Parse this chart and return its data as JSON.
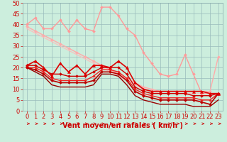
{
  "title": "",
  "xlabel": "Vent moyen/en rafales ( km/h )",
  "ylabel": "",
  "bg_color": "#cceedd",
  "grid_color": "#99bbbb",
  "xlim": [
    -0.5,
    23.5
  ],
  "ylim": [
    0,
    50
  ],
  "yticks": [
    0,
    5,
    10,
    15,
    20,
    25,
    30,
    35,
    40,
    45,
    50
  ],
  "xticks": [
    0,
    1,
    2,
    3,
    4,
    5,
    6,
    7,
    8,
    9,
    10,
    11,
    12,
    13,
    14,
    15,
    16,
    17,
    18,
    19,
    20,
    21,
    22,
    23
  ],
  "series": [
    {
      "name": "rafales_upper",
      "x": [
        0,
        1,
        2,
        3,
        4,
        5,
        6,
        7,
        8,
        9,
        10,
        11,
        12,
        13,
        14,
        15,
        16,
        17,
        18,
        19,
        20,
        21,
        22,
        23
      ],
      "y": [
        40,
        43,
        38,
        38,
        42,
        37,
        42,
        38,
        37,
        48,
        48,
        44,
        38,
        35,
        27,
        22,
        17,
        16,
        17,
        26,
        17,
        8,
        8,
        8
      ],
      "color": "#ff9999",
      "lw": 1.0,
      "marker": "D",
      "ms": 2.0,
      "zorder": 3
    },
    {
      "name": "rafales_trend1",
      "x": [
        0,
        1,
        2,
        3,
        4,
        5,
        6,
        7,
        8,
        9,
        10,
        11,
        12,
        13,
        14,
        15,
        16,
        17,
        18,
        19,
        20,
        21,
        22,
        23
      ],
      "y": [
        39,
        37,
        35,
        33,
        31,
        29,
        27,
        25,
        23,
        21,
        19,
        17,
        15,
        13,
        11,
        10,
        9,
        9,
        9,
        9,
        9,
        9,
        9,
        25
      ],
      "color": "#ffaaaa",
      "lw": 1.0,
      "marker": "D",
      "ms": 2.0,
      "zorder": 3
    },
    {
      "name": "rafales_trend2",
      "x": [
        0,
        1,
        2,
        3,
        4,
        5,
        6,
        7,
        8,
        9,
        10,
        11,
        12,
        13,
        14,
        15,
        16,
        17,
        18,
        19,
        20,
        21,
        22,
        23
      ],
      "y": [
        38,
        36,
        34,
        32,
        30,
        28,
        26,
        24,
        22,
        20,
        18,
        16,
        14,
        12,
        10,
        9,
        8,
        8,
        8,
        8,
        8,
        8,
        8,
        8
      ],
      "color": "#ffbbbb",
      "lw": 0.8,
      "marker": null,
      "ms": 0,
      "zorder": 2
    },
    {
      "name": "vent_upper",
      "x": [
        0,
        1,
        2,
        3,
        4,
        5,
        6,
        7,
        8,
        9,
        10,
        11,
        12,
        13,
        14,
        15,
        16,
        17,
        18,
        19,
        20,
        21,
        22,
        23
      ],
      "y": [
        21,
        23,
        20,
        16,
        22,
        18,
        21,
        17,
        21,
        21,
        20,
        23,
        20,
        13,
        10,
        9,
        9,
        9,
        9,
        9,
        9,
        9,
        8,
        8
      ],
      "color": "#dd0000",
      "lw": 1.2,
      "marker": "^",
      "ms": 3.0,
      "zorder": 4
    },
    {
      "name": "vent_mid1",
      "x": [
        0,
        1,
        2,
        3,
        4,
        5,
        6,
        7,
        8,
        9,
        10,
        11,
        12,
        13,
        14,
        15,
        16,
        17,
        18,
        19,
        20,
        21,
        22,
        23
      ],
      "y": [
        21,
        21,
        19,
        17,
        17,
        16,
        16,
        16,
        18,
        20,
        20,
        20,
        17,
        11,
        9,
        8,
        8,
        8,
        8,
        8,
        7,
        7,
        7,
        8
      ],
      "color": "#cc0000",
      "lw": 1.0,
      "marker": "D",
      "ms": 2.0,
      "zorder": 3
    },
    {
      "name": "vent_mid2",
      "x": [
        0,
        1,
        2,
        3,
        4,
        5,
        6,
        7,
        8,
        9,
        10,
        11,
        12,
        13,
        14,
        15,
        16,
        17,
        18,
        19,
        20,
        21,
        22,
        23
      ],
      "y": [
        20,
        20,
        18,
        15,
        14,
        14,
        14,
        14,
        16,
        19,
        19,
        18,
        15,
        10,
        8,
        7,
        6,
        6,
        6,
        6,
        6,
        5,
        5,
        8
      ],
      "color": "#ee2222",
      "lw": 1.0,
      "marker": "D",
      "ms": 1.8,
      "zorder": 3
    },
    {
      "name": "vent_lower1",
      "x": [
        0,
        1,
        2,
        3,
        4,
        5,
        6,
        7,
        8,
        9,
        10,
        11,
        12,
        13,
        14,
        15,
        16,
        17,
        18,
        19,
        20,
        21,
        22,
        23
      ],
      "y": [
        20,
        19,
        17,
        14,
        13,
        13,
        13,
        13,
        14,
        18,
        18,
        17,
        14,
        9,
        7,
        6,
        5,
        5,
        5,
        5,
        5,
        4,
        3,
        8
      ],
      "color": "#bb0000",
      "lw": 1.2,
      "marker": "D",
      "ms": 2.0,
      "zorder": 3
    },
    {
      "name": "vent_lowest",
      "x": [
        0,
        1,
        2,
        3,
        4,
        5,
        6,
        7,
        8,
        9,
        10,
        11,
        12,
        13,
        14,
        15,
        16,
        17,
        18,
        19,
        20,
        21,
        22,
        23
      ],
      "y": [
        20,
        18,
        16,
        12,
        11,
        11,
        11,
        11,
        12,
        17,
        17,
        16,
        12,
        7,
        5,
        4,
        3,
        3,
        3,
        3,
        2,
        2,
        2,
        5
      ],
      "color": "#990000",
      "lw": 1.0,
      "marker": null,
      "ms": 0,
      "zorder": 2
    }
  ],
  "xlabel_color": "#cc0000",
  "xlabel_fontsize": 7,
  "tick_fontsize": 6,
  "tick_color": "#cc0000"
}
